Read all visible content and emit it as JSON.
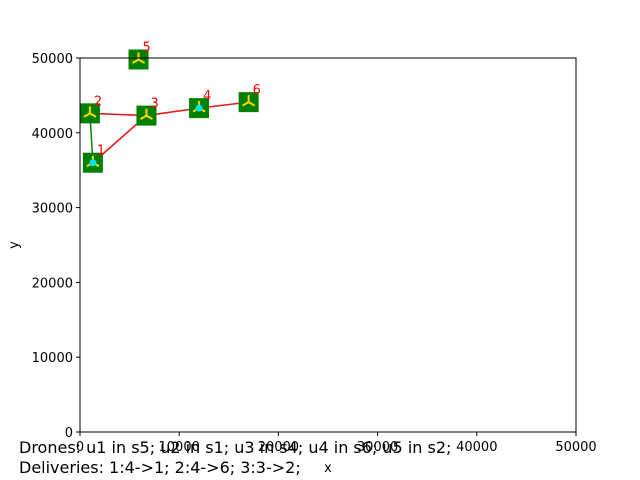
{
  "chart_data": {
    "type": "scatter",
    "xlabel": "x",
    "ylabel": "y",
    "xlim": [
      0,
      50000
    ],
    "ylim": [
      0,
      50000
    ],
    "xticks": [
      {
        "value": 0,
        "label": "0"
      },
      {
        "value": 10000,
        "label": "10000"
      },
      {
        "value": 20000,
        "label": "20000"
      },
      {
        "value": 30000,
        "label": "30000"
      },
      {
        "value": 40000,
        "label": "40000"
      },
      {
        "value": 50000,
        "label": "50000"
      }
    ],
    "yticks": [
      {
        "value": 0,
        "label": "0"
      },
      {
        "value": 10000,
        "label": "10000"
      },
      {
        "value": 20000,
        "label": "20000"
      },
      {
        "value": 30000,
        "label": "30000"
      },
      {
        "value": 40000,
        "label": "40000"
      },
      {
        "value": 50000,
        "label": "50000"
      }
    ],
    "nodes": [
      {
        "id": "1",
        "x": 1300,
        "y": 36000,
        "label": "1"
      },
      {
        "id": "2",
        "x": 1000,
        "y": 42600,
        "label": "2"
      },
      {
        "id": "3",
        "x": 6700,
        "y": 42300,
        "label": "3"
      },
      {
        "id": "4",
        "x": 12000,
        "y": 43300,
        "label": "4"
      },
      {
        "id": "5",
        "x": 5900,
        "y": 49800,
        "label": "5"
      },
      {
        "id": "6",
        "x": 17000,
        "y": 44100,
        "label": "6"
      }
    ],
    "edges": [
      {
        "from": "1",
        "to": "3",
        "color": "#e31a1c"
      },
      {
        "from": "2",
        "to": "3",
        "color": "#e31a1c"
      },
      {
        "from": "3",
        "to": "4",
        "color": "#e31a1c"
      },
      {
        "from": "4",
        "to": "6",
        "color": "#e31a1c"
      },
      {
        "from": "2",
        "to": "1",
        "color": "#1a8a1a"
      }
    ],
    "dots": [
      {
        "x": 1300,
        "y": 36000
      },
      {
        "x": 12000,
        "y": 43300
      }
    ],
    "colors": {
      "station": "#008000",
      "drone": "#ffd700",
      "dot": "#00e5e5",
      "label": "#ff0000"
    }
  },
  "captions": {
    "drones": "Drones: u1 in s5; u2 in s1; u3 in s4; u4 in s6; u5 in s2;",
    "deliveries": "Deliveries: 1:4->1; 2:4->6; 3:3->2;"
  }
}
